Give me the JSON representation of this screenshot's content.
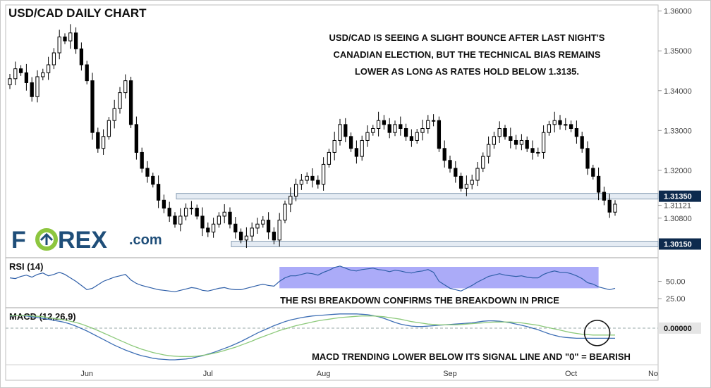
{
  "title": "USD/CAD DAILY CHART",
  "annotation_main": [
    "USD/CAD IS SEEING A SLIGHT BOUNCE AFTER LAST NIGHT'S",
    "CANADIAN ELECTION, BUT THE TECHNICAL BIAS REMAINS",
    "LOWER AS LONG AS RATES HOLD BELOW 1.3135."
  ],
  "logo": {
    "text_a": "F",
    "text_b": "REX",
    "text_c": ".com",
    "primary_color": "#1f4e79",
    "accent_color": "#8dc63f"
  },
  "colors": {
    "candle": "#000000",
    "rsi_line": "#2f5fa8",
    "rsi_highlight": "#8f8ff5",
    "macd_line": "#3e6fb5",
    "signal_line": "#8cc97a",
    "level_line": "#8a9fb5",
    "price_label_bg": "#0d2a4d"
  },
  "chart_data": [
    {
      "type": "candlestick",
      "name": "price",
      "title": "USD/CAD DAILY CHART",
      "y_ticks": [
        "1.36000",
        "1.35000",
        "1.34000",
        "1.33000",
        "1.32000",
        "1.30800"
      ],
      "ylim": [
        1.3,
        1.361
      ],
      "x_ticks": [
        "Jun",
        "Jul",
        "Aug",
        "Sep",
        "Oct",
        "No"
      ],
      "levels": [
        {
          "value": 1.3135,
          "label": "1.31350"
        },
        {
          "value": 1.3015,
          "label": "1.30150"
        }
      ],
      "current_price": {
        "value": 1.31121,
        "label": "1.31121"
      },
      "close": [
        1.343,
        1.3455,
        1.3445,
        1.342,
        1.3385,
        1.3435,
        1.3445,
        1.3465,
        1.3495,
        1.3535,
        1.3525,
        1.3545,
        1.3505,
        1.3465,
        1.3425,
        1.3295,
        1.3255,
        1.3285,
        1.3325,
        1.3355,
        1.3395,
        1.3425,
        1.3315,
        1.3245,
        1.3205,
        1.3185,
        1.3165,
        1.3125,
        1.3105,
        1.3085,
        1.3065,
        1.3085,
        1.3105,
        1.3105,
        1.3085,
        1.3055,
        1.3045,
        1.3065,
        1.3085,
        1.3095,
        1.3065,
        1.3045,
        1.3025,
        1.3035,
        1.3055,
        1.3065,
        1.3075,
        1.3045,
        1.3025,
        1.3075,
        1.3115,
        1.3135,
        1.3165,
        1.3175,
        1.3185,
        1.3175,
        1.3165,
        1.3215,
        1.3245,
        1.3275,
        1.3315,
        1.3285,
        1.3255,
        1.3235,
        1.3275,
        1.3295,
        1.3305,
        1.3325,
        1.3315,
        1.3295,
        1.3315,
        1.3305,
        1.3285,
        1.3275,
        1.3295,
        1.3305,
        1.3325,
        1.3325,
        1.3255,
        1.3225,
        1.3205,
        1.3185,
        1.3155,
        1.3165,
        1.3175,
        1.3205,
        1.3235,
        1.3265,
        1.3285,
        1.3305,
        1.3285,
        1.3275,
        1.3265,
        1.3275,
        1.3255,
        1.3245,
        1.3245,
        1.3295,
        1.3315,
        1.3325,
        1.3315,
        1.3315,
        1.3305,
        1.3285,
        1.3255,
        1.3205,
        1.3185,
        1.3145,
        1.3125,
        1.3095,
        1.3115
      ],
      "series": [
        {
          "name": "USD/CAD"
        }
      ]
    },
    {
      "type": "line",
      "name": "rsi",
      "title": "RSI (14)",
      "y_ticks": [
        "50.00",
        "25.00"
      ],
      "ylim": [
        15,
        80
      ],
      "values": [
        55,
        54,
        57,
        59,
        56,
        60,
        62,
        58,
        60,
        63,
        60,
        55,
        50,
        44,
        38,
        40,
        45,
        50,
        53,
        56,
        58,
        60,
        52,
        47,
        44,
        42,
        40,
        38,
        37,
        36,
        35,
        37,
        39,
        41,
        40,
        37,
        36,
        38,
        40,
        41,
        39,
        38,
        38,
        40,
        42,
        44,
        46,
        44,
        43,
        50,
        55,
        58,
        58,
        60,
        62,
        61,
        59,
        63,
        66,
        70,
        72,
        69,
        66,
        65,
        67,
        68,
        69,
        67,
        66,
        64,
        66,
        65,
        63,
        62,
        64,
        65,
        67,
        63,
        50,
        45,
        40,
        38,
        36,
        40,
        44,
        49,
        53,
        57,
        59,
        61,
        59,
        58,
        57,
        58,
        56,
        55,
        55,
        60,
        63,
        65,
        63,
        63,
        61,
        58,
        54,
        48,
        46,
        42,
        40,
        38,
        40
      ],
      "highlight_text": "THE RSI BREAKDOWN CONFIRMS THE BREAKDOWN IN PRICE"
    },
    {
      "type": "line",
      "name": "macd",
      "title": "MACD (12,26,9)",
      "y_ticks": [
        "0.00000"
      ],
      "ylim": [
        -0.0085,
        0.0045
      ],
      "series": [
        {
          "values": [
            0.003,
            0.0031,
            0.0031,
            0.003,
            0.0028,
            0.0026,
            0.0024,
            0.0022,
            0.0019,
            0.0017,
            0.0014,
            0.001,
            0.0005,
            -0.0001,
            -0.0007,
            -0.0014,
            -0.0021,
            -0.0028,
            -0.0035,
            -0.0042,
            -0.0048,
            -0.0054,
            -0.0059,
            -0.0064,
            -0.0068,
            -0.0071,
            -0.0074,
            -0.0076,
            -0.0077,
            -0.0078,
            -0.0078,
            -0.0077,
            -0.0076,
            -0.0074,
            -0.0071,
            -0.0068,
            -0.0064,
            -0.006,
            -0.0055,
            -0.005,
            -0.0045,
            -0.0039,
            -0.0033,
            -0.0026,
            -0.0019,
            -0.0012,
            -0.0006,
            0.0,
            0.0006,
            0.0011,
            0.0016,
            0.002,
            0.0023,
            0.0026,
            0.0028,
            0.003,
            0.0031,
            0.0032,
            0.0033,
            0.0034,
            0.0035,
            0.0035,
            0.0035,
            0.0035,
            0.0034,
            0.0033,
            0.0031,
            0.0028,
            0.0024,
            0.0019,
            0.0014,
            0.001,
            0.0007,
            0.0005,
            0.0004,
            0.0004,
            0.0005,
            0.0006,
            0.0007,
            0.0008,
            0.0009,
            0.001,
            0.0011,
            0.0012,
            0.0013,
            0.0015,
            0.0017,
            0.0018,
            0.0018,
            0.0017,
            0.0015,
            0.0013,
            0.001,
            0.0007,
            0.0004,
            0.0,
            -0.0004,
            -0.0009,
            -0.0014,
            -0.0018,
            -0.0021,
            -0.0023,
            -0.0024,
            -0.0025,
            -0.0025,
            -0.0025,
            -0.0025,
            -0.0025,
            -0.0025,
            -0.0025,
            -0.0025
          ]
        },
        {
          "values": [
            0.0031,
            0.0031,
            0.0031,
            0.0031,
            0.003,
            0.0029,
            0.0028,
            0.0026,
            0.0024,
            0.0022,
            0.002,
            0.0017,
            0.0014,
            0.001,
            0.0005,
            0.0,
            -0.0006,
            -0.0012,
            -0.0018,
            -0.0024,
            -0.003,
            -0.0036,
            -0.0042,
            -0.0047,
            -0.0052,
            -0.0056,
            -0.006,
            -0.0063,
            -0.0066,
            -0.0068,
            -0.0069,
            -0.007,
            -0.007,
            -0.007,
            -0.0069,
            -0.0067,
            -0.0065,
            -0.0062,
            -0.0059,
            -0.0055,
            -0.0051,
            -0.0047,
            -0.0042,
            -0.0037,
            -0.0032,
            -0.0026,
            -0.0021,
            -0.0016,
            -0.0011,
            -0.0006,
            -0.0002,
            0.0002,
            0.0006,
            0.0009,
            0.0012,
            0.0015,
            0.0018,
            0.002,
            0.0022,
            0.0024,
            0.0026,
            0.0027,
            0.0028,
            0.0029,
            0.003,
            0.003,
            0.003,
            0.0029,
            0.0028,
            0.0026,
            0.0024,
            0.0022,
            0.0019,
            0.0016,
            0.0014,
            0.0012,
            0.001,
            0.0009,
            0.0008,
            0.0008,
            0.0008,
            0.0008,
            0.0009,
            0.001,
            0.0011,
            0.0012,
            0.0013,
            0.0014,
            0.0015,
            0.0015,
            0.0015,
            0.0015,
            0.0014,
            0.0013,
            0.0011,
            0.0009,
            0.0007,
            0.0004,
            0.0001,
            -0.0002,
            -0.0005,
            -0.0008,
            -0.0011,
            -0.0013,
            -0.0015,
            -0.0016,
            -0.0017,
            -0.0017,
            -0.0017,
            -0.0017,
            -0.0017
          ]
        }
      ],
      "annotation": "MACD TRENDING LOWER BELOW ITS SIGNAL LINE AND \"0\" = BEARISH"
    }
  ]
}
